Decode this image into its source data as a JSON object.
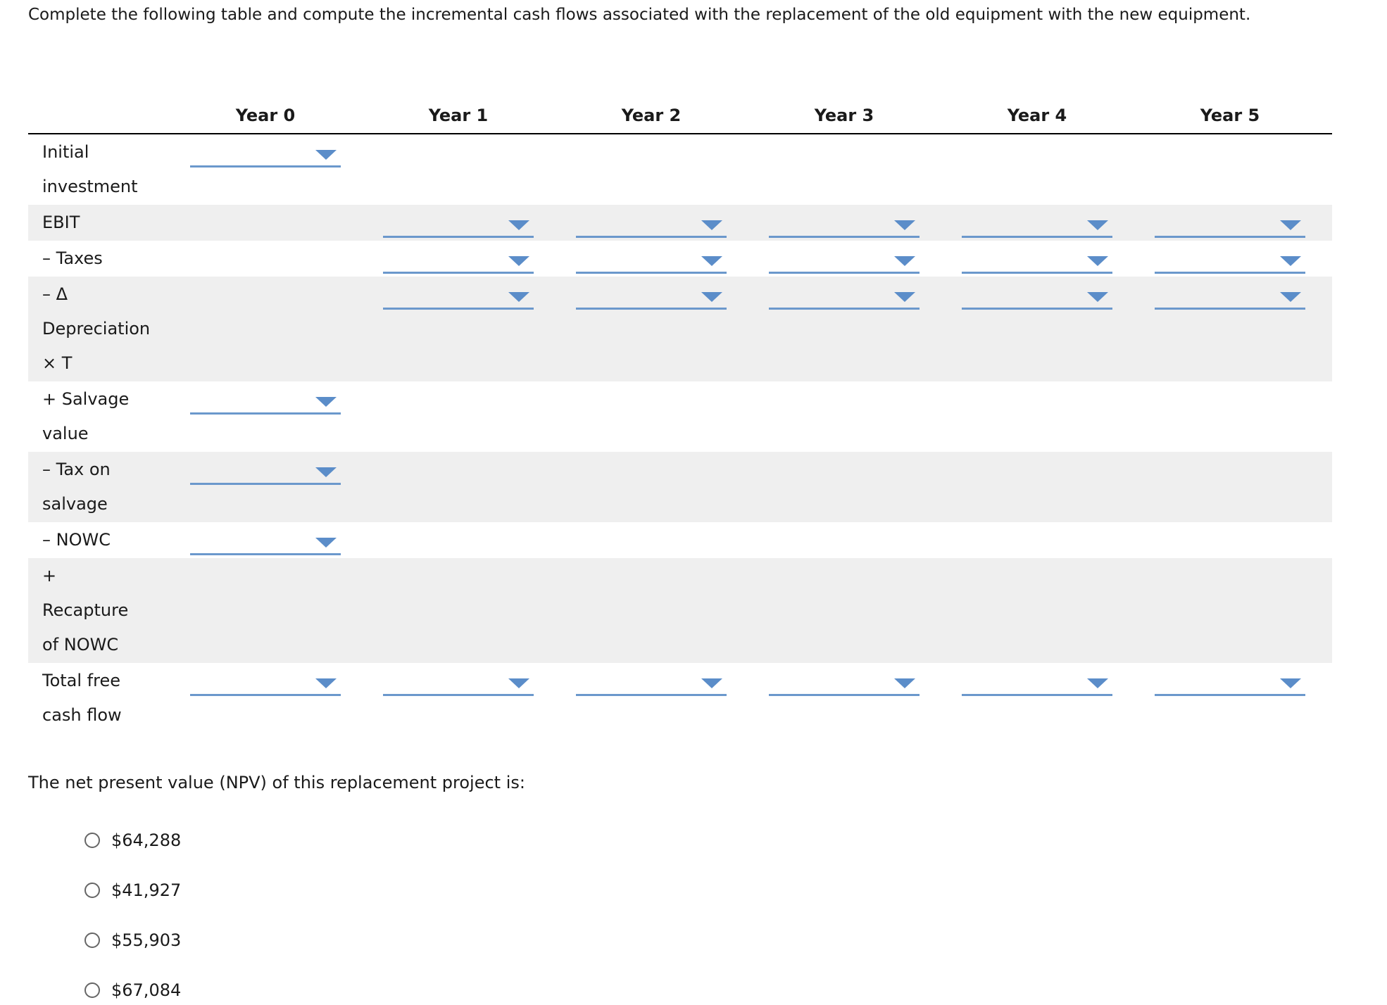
{
  "instruction": "Complete the following table and compute the incremental cash flows associated with the replacement of the old equipment with the new equipment.",
  "table": {
    "columns": [
      "Year 0",
      "Year 1",
      "Year 2",
      "Year 3",
      "Year 4",
      "Year 5"
    ],
    "rows": [
      {
        "label": [
          "Initial",
          "investment"
        ]
      },
      {
        "label": [
          "EBIT"
        ]
      },
      {
        "label": [
          "– Taxes"
        ]
      },
      {
        "label": [
          "– Δ",
          "Depreciation",
          "× T"
        ]
      },
      {
        "label": [
          "+ Salvage",
          "value"
        ]
      },
      {
        "label": [
          "– Tax on",
          "salvage"
        ]
      },
      {
        "label": [
          "– NOWC"
        ]
      },
      {
        "label": [
          "+",
          "Recapture",
          "of NOWC"
        ]
      },
      {
        "label": [
          "Total free",
          "cash flow"
        ]
      }
    ]
  },
  "question": "The net present value (NPV) of this replacement project is:",
  "options": [
    "$64,288",
    "$41,927",
    "$55,903",
    "$67,084"
  ]
}
